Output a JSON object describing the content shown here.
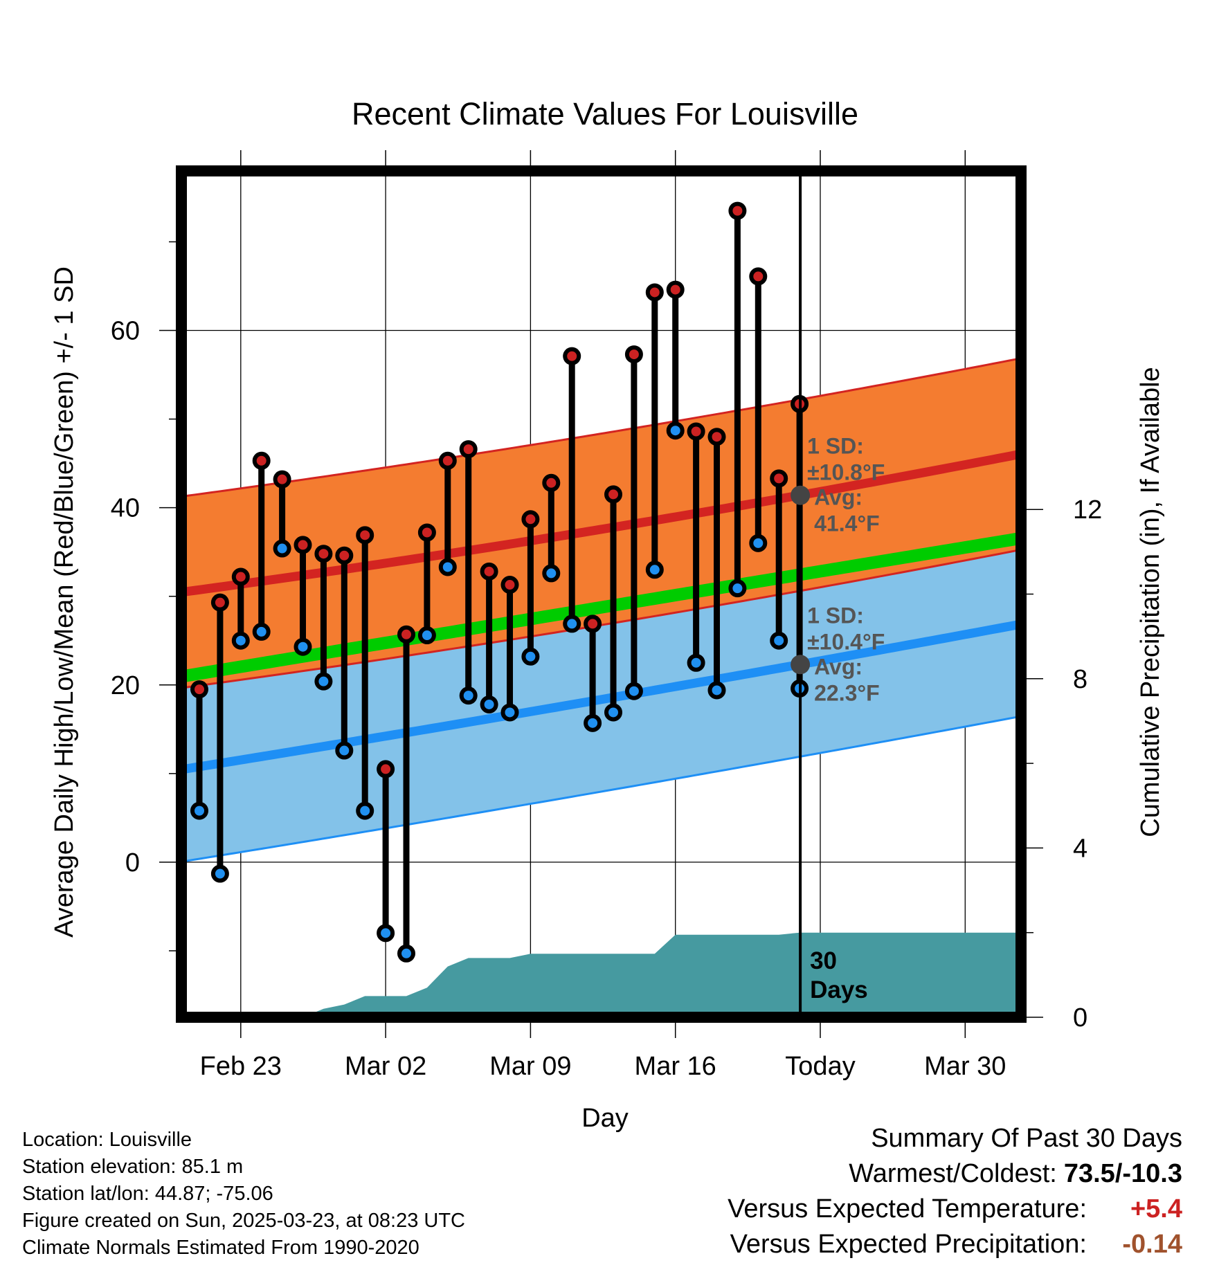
{
  "chart_data": {
    "type": "line",
    "title": "Recent Climate Values For Louisville",
    "xlabel": "Day",
    "ylabel_left": "Average Daily High/Low/Mean (Red/Blue/Green) +/- 1 SD",
    "ylabel_right": "Cumulative Precipitation (in), If Available",
    "x_ticks": [
      "Feb 23",
      "Mar 02",
      "Mar 09",
      "Mar 16",
      "Today",
      "Mar 30"
    ],
    "y_ticks_left": [
      "0",
      "20",
      "40",
      "60"
    ],
    "y_ticks_right": [
      "0",
      "4",
      "8",
      "12"
    ],
    "ylim_left": [
      -17.5,
      78
    ],
    "ylim_right": [
      0,
      20
    ],
    "days": [
      "Feb 21",
      "Feb 22",
      "Feb 23",
      "Feb 24",
      "Feb 25",
      "Feb 26",
      "Feb 27",
      "Feb 28",
      "Mar 01",
      "Mar 02",
      "Mar 03",
      "Mar 04",
      "Mar 05",
      "Mar 06",
      "Mar 07",
      "Mar 08",
      "Mar 09",
      "Mar 10",
      "Mar 11",
      "Mar 12",
      "Mar 13",
      "Mar 14",
      "Mar 15",
      "Mar 16",
      "Mar 17",
      "Mar 18",
      "Mar 19",
      "Mar 20",
      "Mar 21",
      "Mar 22",
      "Mar 23",
      "Mar 24",
      "Mar 25",
      "Mar 26",
      "Mar 27",
      "Mar 28",
      "Mar 29",
      "Mar 30",
      "Mar 31",
      "Apr 01"
    ],
    "highs": [
      19.5,
      29.3,
      32.2,
      45.3,
      43.2,
      35.8,
      34.8,
      34.6,
      36.9,
      10.5,
      25.7,
      37.2,
      45.3,
      46.6,
      32.8,
      31.3,
      38.7,
      42.8,
      57.1,
      26.9,
      41.5,
      57.3,
      64.3,
      64.6,
      48.6,
      48.0,
      73.5,
      66.1,
      43.3,
      51.7
    ],
    "lows": [
      5.8,
      -1.3,
      25.0,
      26.0,
      35.4,
      24.3,
      20.4,
      12.6,
      5.8,
      -8.0,
      -10.3,
      25.6,
      33.3,
      18.8,
      17.8,
      16.9,
      23.2,
      32.6,
      26.9,
      15.7,
      16.9,
      19.3,
      33.0,
      48.7,
      22.5,
      19.4,
      30.9,
      36.0,
      25.0,
      19.6
    ],
    "normal_high": {
      "start": 30.5,
      "today": 41.4,
      "end": 46.0,
      "sd": "±10.8°F",
      "avg": "41.4°F"
    },
    "normal_low": {
      "start": 10.5,
      "today": 22.3,
      "end": 26.8,
      "sd": "±10.4°F",
      "avg": "22.3°F"
    },
    "normal_mean": {
      "start": 21.0,
      "end": 36.5
    },
    "precip_cum": [
      0,
      0,
      0,
      0,
      0,
      0,
      0.2,
      0.3,
      0.5,
      0.5,
      0.5,
      0.7,
      1.2,
      1.4,
      1.4,
      1.4,
      1.5,
      1.5,
      1.5,
      1.5,
      1.5,
      1.5,
      1.5,
      1.95,
      1.95,
      1.95,
      1.95,
      1.95,
      1.95,
      2.0,
      2.0,
      2.0,
      2.0,
      2.0,
      2.0,
      2.0,
      2.0,
      2.0,
      2.0,
      2.0
    ],
    "sd_label": "1 SD:",
    "avg_label": "Avg:",
    "days_label": "30\nDays",
    "colors": {
      "high_band": "#f47c30",
      "high_line": "#d32421",
      "low_band": "#83c2e9",
      "low_line": "#1e8ff5",
      "mean_line": "#00cc00",
      "overlap": "#9b1212",
      "precip": "#469aa0",
      "high_dot": "#cc2222",
      "low_dot": "#2090f0",
      "text_dark": "#555555"
    }
  },
  "info": {
    "location": "Location: Louisville",
    "elevation": "Station elevation: 85.1 m",
    "latlon": "Station lat/lon: 44.87; -75.06",
    "created": "Figure created on Sun, 2025-03-23, at 08:23 UTC",
    "normals": "Climate Normals Estimated From 1990-2020"
  },
  "summary": {
    "title": "Summary Of Past 30 Days",
    "warmest_label": "Warmest/Coldest:",
    "warmest_value": "73.5/-10.3",
    "temp_label": "Versus Expected Temperature:",
    "temp_value": "+5.4",
    "temp_color": "#cc2222",
    "precip_label": "Versus Expected Precipitation:",
    "precip_value": "-0.14",
    "precip_color": "#a0522d"
  }
}
